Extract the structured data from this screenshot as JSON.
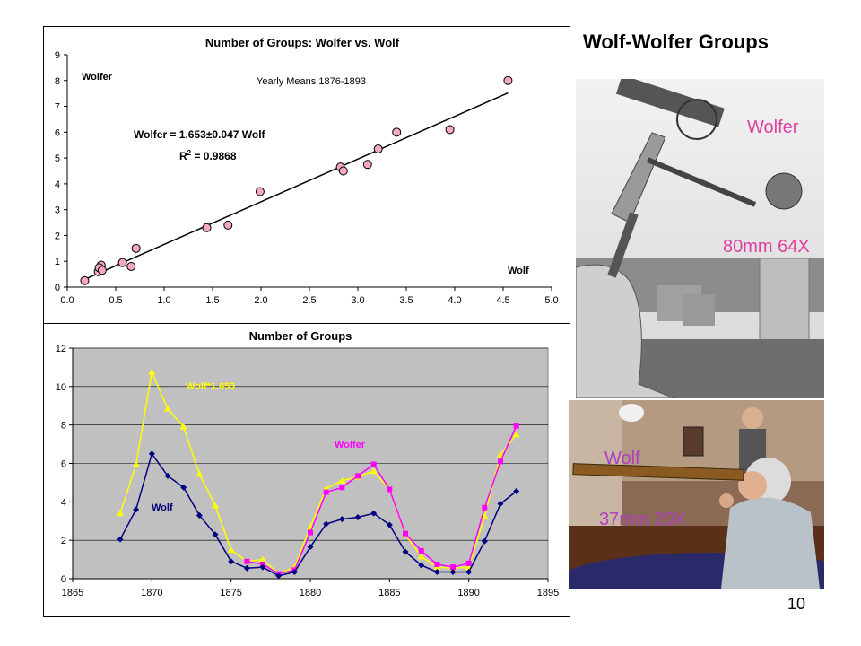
{
  "slide": {
    "title": "Wolf-Wolfer Groups",
    "page_number": "10"
  },
  "photos": {
    "wolfer": {
      "name": "Wolfer",
      "spec": "80mm 64X",
      "color": "#e040a0"
    },
    "wolf": {
      "name": "Wolf",
      "spec": "37mm 20X",
      "color": "#b040c0"
    }
  },
  "chart_data": [
    {
      "type": "scatter",
      "title": "Number of Groups: Wolfer vs. Wolf",
      "annotation": "Yearly Means 1876-1893",
      "xlabel": "Wolf",
      "ylabel": "Wolfer",
      "xlim": [
        0,
        5
      ],
      "ylim": [
        0,
        9
      ],
      "xticks": [
        "0.0",
        "0.5",
        "1.0",
        "1.5",
        "2.0",
        "2.5",
        "3.0",
        "3.5",
        "4.0",
        "4.5",
        "5.0"
      ],
      "yticks": [
        "0",
        "1",
        "2",
        "3",
        "4",
        "5",
        "6",
        "7",
        "8",
        "9"
      ],
      "equation": "Wolfer = 1.653±0.047 Wolf",
      "r2_prefix": "R",
      "r2_exp": "2",
      "r2_value": " = 0.9868",
      "slope": 1.653,
      "fit_range": [
        0.2,
        4.55
      ],
      "marker_color": "#f4a7c3",
      "points": [
        [
          0.18,
          0.25
        ],
        [
          0.32,
          0.6
        ],
        [
          0.35,
          0.85
        ],
        [
          0.33,
          0.75
        ],
        [
          0.36,
          0.65
        ],
        [
          0.57,
          0.95
        ],
        [
          0.66,
          0.8
        ],
        [
          0.71,
          1.5
        ],
        [
          1.44,
          2.3
        ],
        [
          1.66,
          2.4
        ],
        [
          1.99,
          3.7
        ],
        [
          2.82,
          4.65
        ],
        [
          2.85,
          4.5
        ],
        [
          3.1,
          4.75
        ],
        [
          3.21,
          5.35
        ],
        [
          3.4,
          6.0
        ],
        [
          3.95,
          6.1
        ],
        [
          4.55,
          8.0
        ]
      ],
      "grid": false
    },
    {
      "type": "line",
      "title": "Number of Groups",
      "xlim": [
        1865,
        1895
      ],
      "ylim": [
        0,
        12
      ],
      "xticks": [
        "1865",
        "1870",
        "1875",
        "1880",
        "1885",
        "1890",
        "1895"
      ],
      "yticks": [
        "0",
        "2",
        "4",
        "6",
        "8",
        "10",
        "12"
      ],
      "plot_bg": "#c0c0c0",
      "grid": true,
      "x": [
        1868,
        1869,
        1870,
        1871,
        1872,
        1873,
        1874,
        1875,
        1876,
        1877,
        1878,
        1879,
        1880,
        1881,
        1882,
        1883,
        1884,
        1885,
        1886,
        1887,
        1888,
        1889,
        1890,
        1891,
        1892,
        1893
      ],
      "series": [
        {
          "name": "Wolf",
          "color": "#000080",
          "marker": "diamond",
          "values": [
            2.05,
            3.6,
            6.5,
            5.35,
            4.75,
            3.3,
            2.3,
            0.9,
            0.55,
            0.6,
            0.15,
            0.35,
            1.65,
            2.85,
            3.1,
            3.2,
            3.4,
            2.8,
            1.4,
            0.7,
            0.35,
            0.35,
            0.35,
            1.95,
            3.9,
            4.55
          ]
        },
        {
          "name": "Wolfer",
          "color": "#ff00ff",
          "marker": "square",
          "values": [
            null,
            null,
            null,
            null,
            null,
            null,
            null,
            null,
            0.9,
            0.75,
            0.25,
            0.45,
            2.4,
            4.5,
            4.75,
            5.35,
            5.95,
            4.65,
            2.35,
            1.45,
            0.75,
            0.6,
            0.8,
            3.7,
            6.1,
            7.95
          ]
        },
        {
          "name": "Wolf*1.653",
          "color": "#ffff00",
          "marker": "triangle",
          "values": [
            3.4,
            5.95,
            10.75,
            8.85,
            7.9,
            5.45,
            3.8,
            1.5,
            0.9,
            1.0,
            0.25,
            0.6,
            2.7,
            4.7,
            5.1,
            5.3,
            5.6,
            4.65,
            2.3,
            1.15,
            0.6,
            0.55,
            0.6,
            3.25,
            6.45,
            7.5
          ]
        }
      ]
    }
  ]
}
